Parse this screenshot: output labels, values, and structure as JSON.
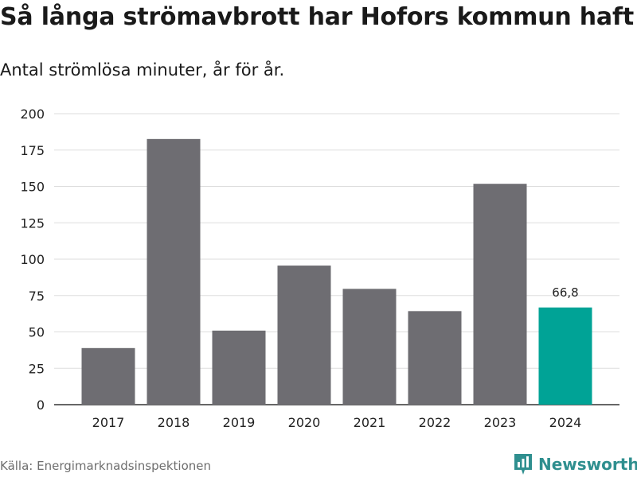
{
  "title": "Så långa strömavbrott har Hofors kommun haft",
  "subtitle": "Antal strömlösa minuter, år för år.",
  "source": "Källa: Energimarknadsinspektionen",
  "brand": {
    "name": "Newsworthy",
    "icon": "newsworthy-logo-icon",
    "color": "#2f8f8f"
  },
  "colors": {
    "bar": "#6e6d72",
    "highlight": "#00a396",
    "grid": "#dddddd",
    "axis": "#333333"
  },
  "chart_data": {
    "type": "bar",
    "categories": [
      "2017",
      "2018",
      "2019",
      "2020",
      "2021",
      "2022",
      "2023",
      "2024"
    ],
    "values": [
      38.9,
      182.6,
      50.9,
      95.6,
      79.6,
      64.3,
      151.8,
      66.8
    ],
    "highlight_index": 7,
    "data_labels": [
      {
        "index": 7,
        "text": "66,8"
      }
    ],
    "yticks": [
      "0",
      "25",
      "50",
      "75",
      "100",
      "125",
      "150",
      "175",
      "200"
    ],
    "ylim": [
      0,
      200
    ],
    "grid": true,
    "xlabel": "",
    "ylabel": ""
  }
}
